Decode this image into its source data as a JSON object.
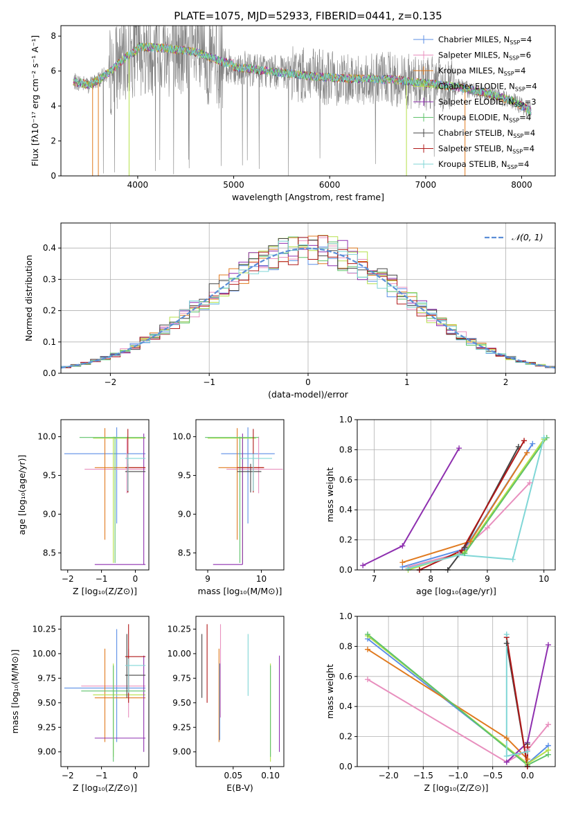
{
  "colors": {
    "chabrier_miles": "#5b8ee6",
    "salpeter_miles": "#e88fbe",
    "kroupa_miles": "#e07a1f",
    "chabrier_elodie": "#b5e04a",
    "salpeter_elodie": "#8e2faf",
    "kroupa_elodie": "#5ec26a",
    "chabrier_stelib": "#444444",
    "salpeter_stelib": "#b01818",
    "kroupa_stelib": "#7fd6d6",
    "data": "#808080",
    "normal": "#5b8ed6"
  },
  "chart_data": [
    {
      "id": "spectrum",
      "type": "line",
      "title": "PLATE=1075, MJD=52933, FIBERID=0441, z=0.135",
      "xlabel": "wavelength [Angstrom, rest frame]",
      "ylabel": "Flux [fλ10⁻¹⁷ erg cm⁻² s⁻¹ A⁻¹]",
      "xlim": [
        3200,
        8350
      ],
      "ylim": [
        0,
        8.6
      ],
      "xticks": [
        "4000",
        "5000",
        "6000",
        "7000",
        "8000"
      ],
      "yticks": [
        "0",
        "2",
        "4",
        "6",
        "8"
      ],
      "legend": [
        {
          "base": "Chabrier MILES, N",
          "sub": "SSP",
          "tail": "=4",
          "color": "chabrier_miles"
        },
        {
          "base": "Salpeter MILES, N",
          "sub": "SSP",
          "tail": "=6",
          "color": "salpeter_miles"
        },
        {
          "base": "Kroupa MILES, N",
          "sub": "SSP",
          "tail": "=4",
          "color": "kroupa_miles"
        },
        {
          "base": "Chabrier ELODIE, N",
          "sub": "SSP",
          "tail": "=4",
          "color": "chabrier_elodie"
        },
        {
          "base": "Salpeter ELODIE, N",
          "sub": "SSP",
          "tail": "=3",
          "color": "salpeter_elodie"
        },
        {
          "base": "Kroupa ELODIE, N",
          "sub": "SSP",
          "tail": "=4",
          "color": "kroupa_elodie"
        },
        {
          "base": "Chabrier STELIB, N",
          "sub": "SSP",
          "tail": "=4",
          "color": "chabrier_stelib"
        },
        {
          "base": "Salpeter STELIB, N",
          "sub": "SSP",
          "tail": "=4",
          "color": "salpeter_stelib"
        },
        {
          "base": "Kroupa STELIB, N",
          "sub": "SSP",
          "tail": "=4",
          "color": "kroupa_stelib"
        }
      ],
      "continuum": [
        [
          3330,
          5.4
        ],
        [
          3500,
          5.2
        ],
        [
          3700,
          5.9
        ],
        [
          3900,
          6.9
        ],
        [
          4000,
          7.2
        ],
        [
          4300,
          7.1
        ],
        [
          4600,
          6.9
        ],
        [
          4900,
          6.3
        ],
        [
          5200,
          6.1
        ],
        [
          5500,
          5.9
        ],
        [
          5800,
          5.7
        ],
        [
          6100,
          5.6
        ],
        [
          6400,
          5.55
        ],
        [
          6700,
          5.5
        ],
        [
          7000,
          5.3
        ],
        [
          7300,
          5.1
        ],
        [
          7600,
          4.8
        ],
        [
          7900,
          4.3
        ],
        [
          8100,
          3.7
        ]
      ]
    },
    {
      "id": "residuals",
      "type": "histogram",
      "xlabel": "(data-model)/error",
      "ylabel": "Normed distribution",
      "xlim": [
        -2.5,
        2.5
      ],
      "ylim": [
        0,
        0.48
      ],
      "xticks": [
        "−2",
        "−1",
        "0",
        "1",
        "2"
      ],
      "yticks": [
        "0.0",
        "0.1",
        "0.2",
        "0.3",
        "0.4"
      ],
      "legend": "𝒩(0, 1)",
      "grid": true
    },
    {
      "id": "age_vs_Z",
      "type": "errorbar",
      "xlabel": "Z [log₁₀(Z/Z⊙)]",
      "ylabel": "age  [log₁₀(age/yr)]",
      "xlim": [
        -2.2,
        0.4
      ],
      "ylim": [
        8.28,
        10.22
      ],
      "xticks": [
        "−2",
        "−1",
        "0"
      ],
      "yticks": [
        "8.5",
        "9.0",
        "9.5",
        "10.0"
      ],
      "points": [
        {
          "color": "chabrier_miles",
          "x": -0.55,
          "xe": [
            -2.1,
            0.3
          ],
          "y": 9.78,
          "ye": [
            8.88,
            10.12
          ]
        },
        {
          "color": "salpeter_miles",
          "x": -0.25,
          "xe": [
            -1.5,
            0.3
          ],
          "y": 9.58,
          "ye": [
            9.27,
            10.0
          ]
        },
        {
          "color": "kroupa_miles",
          "x": -0.9,
          "xe": [
            -1.2,
            0.3
          ],
          "y": 9.6,
          "ye": [
            8.67,
            10.11
          ]
        },
        {
          "color": "chabrier_elodie",
          "x": -0.65,
          "xe": [
            -1.25,
            0.3
          ],
          "y": 9.98,
          "ye": [
            8.37,
            10.0
          ]
        },
        {
          "color": "salpeter_elodie",
          "x": 0.25,
          "xe": [
            -1.2,
            0.3
          ],
          "y": 8.35,
          "ye": [
            8.35,
            10.04
          ]
        },
        {
          "color": "kroupa_elodie",
          "x": -0.6,
          "xe": [
            -1.65,
            0.3
          ],
          "y": 9.99,
          "ye": [
            8.37,
            10.0
          ]
        },
        {
          "color": "chabrier_stelib",
          "x": -0.22,
          "xe": [
            -0.3,
            0.3
          ],
          "y": 9.55,
          "ye": [
            9.28,
            9.65
          ]
        },
        {
          "color": "salpeter_stelib",
          "x": -0.22,
          "xe": [
            -0.3,
            0.3
          ],
          "y": 9.6,
          "ye": [
            9.28,
            10.1
          ]
        },
        {
          "color": "kroupa_stelib",
          "x": -0.22,
          "xe": [
            -0.3,
            0.3
          ],
          "y": 9.72,
          "ye": [
            9.3,
            9.78
          ]
        }
      ]
    },
    {
      "id": "age_vs_mass",
      "type": "errorbar",
      "xlabel": "mass [log₁₀(M/M⊙)]",
      "ylabel": "",
      "xlim": [
        8.78,
        10.42
      ],
      "ylim": [
        8.28,
        10.22
      ],
      "xticks": [
        "9",
        "10"
      ],
      "yticks": [
        "8.5",
        "9.0",
        "9.5",
        "10.0"
      ],
      "points": [
        {
          "color": "chabrier_miles",
          "x": 9.75,
          "xe": [
            9.25,
            10.25
          ],
          "y": 9.78,
          "ye": [
            8.88,
            10.12
          ]
        },
        {
          "color": "salpeter_miles",
          "x": 9.95,
          "xe": [
            9.35,
            10.4
          ],
          "y": 9.58,
          "ye": [
            9.27,
            10.0
          ]
        },
        {
          "color": "kroupa_miles",
          "x": 9.55,
          "xe": [
            9.2,
            10.05
          ],
          "y": 9.6,
          "ye": [
            8.67,
            10.11
          ]
        },
        {
          "color": "chabrier_elodie",
          "x": 9.65,
          "xe": [
            9.0,
            9.9
          ],
          "y": 9.98,
          "ye": [
            8.37,
            10.0
          ]
        },
        {
          "color": "salpeter_elodie",
          "x": 9.65,
          "xe": [
            9.1,
            9.65
          ],
          "y": 8.35,
          "ye": [
            8.35,
            10.04
          ]
        },
        {
          "color": "kroupa_elodie",
          "x": 9.6,
          "xe": [
            8.95,
            9.95
          ],
          "y": 9.99,
          "ye": [
            8.37,
            10.0
          ]
        },
        {
          "color": "chabrier_stelib",
          "x": 9.8,
          "xe": [
            9.55,
            10.0
          ],
          "y": 9.55,
          "ye": [
            9.28,
            9.65
          ]
        },
        {
          "color": "salpeter_stelib",
          "x": 9.85,
          "xe": [
            9.55,
            10.05
          ],
          "y": 9.6,
          "ye": [
            9.28,
            10.1
          ]
        },
        {
          "color": "kroupa_stelib",
          "x": 9.85,
          "xe": [
            9.6,
            10.2
          ],
          "y": 9.72,
          "ye": [
            9.3,
            9.78
          ]
        }
      ]
    },
    {
      "id": "massweight_vs_age",
      "type": "line",
      "xlabel": "age  [log₁₀(age/yr)]",
      "ylabel": "mass weight",
      "xlim": [
        6.7,
        10.2
      ],
      "ylim": [
        0,
        1.0
      ],
      "xticks": [
        "7",
        "8",
        "9",
        "10"
      ],
      "yticks": [
        "0.0",
        "0.2",
        "0.4",
        "0.6",
        "0.8",
        "1.0"
      ],
      "grid": true,
      "series": [
        {
          "color": "chabrier_miles",
          "x": [
            7.5,
            8.6,
            9.8
          ],
          "y": [
            0.02,
            0.14,
            0.84
          ]
        },
        {
          "color": "salpeter_miles",
          "x": [
            7.6,
            8.5,
            9.0,
            9.75
          ],
          "y": [
            0.02,
            0.11,
            0.28,
            0.58
          ]
        },
        {
          "color": "kroupa_miles",
          "x": [
            7.5,
            8.7,
            9.7
          ],
          "y": [
            0.05,
            0.19,
            0.78
          ]
        },
        {
          "color": "chabrier_elodie",
          "x": [
            7.6,
            8.6,
            10.0
          ],
          "y": [
            0.0,
            0.12,
            0.87
          ]
        },
        {
          "color": "salpeter_elodie",
          "x": [
            6.8,
            7.5,
            8.5
          ],
          "y": [
            0.03,
            0.16,
            0.81
          ]
        },
        {
          "color": "kroupa_elodie",
          "x": [
            7.6,
            8.6,
            10.05
          ],
          "y": [
            0.01,
            0.11,
            0.88
          ]
        },
        {
          "color": "chabrier_stelib",
          "x": [
            7.8,
            8.3,
            8.6,
            9.55
          ],
          "y": [
            0.0,
            0.0,
            0.15,
            0.82
          ]
        },
        {
          "color": "salpeter_stelib",
          "x": [
            7.8,
            8.55,
            9.65
          ],
          "y": [
            0.0,
            0.13,
            0.86
          ]
        },
        {
          "color": "kroupa_stelib",
          "x": [
            7.6,
            8.5,
            9.45,
            10.0
          ],
          "y": [
            0.01,
            0.1,
            0.07,
            0.88
          ]
        }
      ]
    },
    {
      "id": "mass_vs_Z",
      "type": "errorbar",
      "xlabel": "Z [log₁₀(Z/Z⊙)]",
      "ylabel": "mass [log₁₀(M/M⊙)]",
      "xlim": [
        -2.2,
        0.4
      ],
      "ylim": [
        8.85,
        10.38
      ],
      "xticks": [
        "−2",
        "−1",
        "0"
      ],
      "yticks": [
        "9.00",
        "9.25",
        "9.50",
        "9.75",
        "10.00",
        "10.25"
      ],
      "points": [
        {
          "color": "chabrier_miles",
          "x": -0.55,
          "xe": [
            -2.1,
            0.3
          ],
          "y": 9.65,
          "ye": [
            9.1,
            10.25
          ]
        },
        {
          "color": "salpeter_miles",
          "x": -0.2,
          "xe": [
            -1.6,
            0.3
          ],
          "y": 9.67,
          "ye": [
            9.35,
            10.05
          ]
        },
        {
          "color": "kroupa_miles",
          "x": -0.9,
          "xe": [
            -1.2,
            0.3
          ],
          "y": 9.55,
          "ye": [
            9.1,
            10.05
          ]
        },
        {
          "color": "chabrier_elodie",
          "x": -0.65,
          "xe": [
            -1.25,
            0.3
          ],
          "y": 9.58,
          "ye": [
            8.95,
            9.9
          ]
        },
        {
          "color": "salpeter_elodie",
          "x": 0.25,
          "xe": [
            -1.2,
            0.3
          ],
          "y": 9.14,
          "ye": [
            9.0,
            9.98
          ]
        },
        {
          "color": "kroupa_elodie",
          "x": -0.65,
          "xe": [
            -1.6,
            0.3
          ],
          "y": 9.62,
          "ye": [
            8.9,
            9.88
          ]
        },
        {
          "color": "chabrier_stelib",
          "x": -0.25,
          "xe": [
            -0.3,
            0.3
          ],
          "y": 9.78,
          "ye": [
            9.55,
            10.2
          ]
        },
        {
          "color": "salpeter_stelib",
          "x": -0.2,
          "xe": [
            -0.3,
            0.3
          ],
          "y": 9.97,
          "ye": [
            9.5,
            10.3
          ]
        },
        {
          "color": "kroupa_stelib",
          "x": -0.2,
          "xe": [
            -0.3,
            0.3
          ],
          "y": 9.88,
          "ye": [
            9.6,
            9.95
          ]
        }
      ]
    },
    {
      "id": "mass_vs_ebv",
      "type": "errorbar",
      "xlabel": "E(B-V)",
      "ylabel": "",
      "xlim": [
        0.0,
        0.118
      ],
      "ylim": [
        8.85,
        10.38
      ],
      "xticks": [
        "0.05",
        "0.10"
      ],
      "yticks": [
        "9.00",
        "9.25",
        "9.50",
        "9.75",
        "10.00",
        "10.25"
      ],
      "points": [
        {
          "color": "chabrier_stelib",
          "x": 0.008,
          "xe": [
            0.008,
            0.008
          ],
          "y": 9.78,
          "ye": [
            9.55,
            10.2
          ]
        },
        {
          "color": "salpeter_stelib",
          "x": 0.015,
          "xe": [
            0.015,
            0.015
          ],
          "y": 9.97,
          "ye": [
            9.5,
            10.3
          ]
        },
        {
          "color": "salpeter_miles",
          "x": 0.033,
          "xe": [
            0.033,
            0.033
          ],
          "y": 9.67,
          "ye": [
            9.35,
            10.3
          ]
        },
        {
          "color": "kroupa_miles",
          "x": 0.031,
          "xe": [
            0.031,
            0.031
          ],
          "y": 9.55,
          "ye": [
            9.1,
            10.05
          ]
        },
        {
          "color": "chabrier_miles",
          "x": 0.032,
          "xe": [
            0.032,
            0.032
          ],
          "y": 9.65,
          "ye": [
            9.12,
            9.9
          ]
        },
        {
          "color": "kroupa_stelib",
          "x": 0.07,
          "xe": [
            0.07,
            0.07
          ],
          "y": 9.88,
          "ye": [
            9.57,
            10.2
          ]
        },
        {
          "color": "chabrier_elodie",
          "x": 0.1,
          "xe": [
            0.1,
            0.1
          ],
          "y": 9.58,
          "ye": [
            8.9,
            9.9
          ]
        },
        {
          "color": "kroupa_elodie",
          "x": 0.1,
          "xe": [
            0.1,
            0.1
          ],
          "y": 9.62,
          "ye": [
            8.95,
            9.88
          ]
        },
        {
          "color": "salpeter_elodie",
          "x": 0.112,
          "xe": [
            0.112,
            0.112
          ],
          "y": 9.14,
          "ye": [
            9.0,
            9.98
          ]
        }
      ]
    },
    {
      "id": "massweight_vs_Z",
      "type": "line",
      "xlabel": "Z [log₁₀(Z/Z⊙)]",
      "ylabel": "mass weight",
      "xlim": [
        -2.45,
        0.4
      ],
      "ylim": [
        0,
        1.0
      ],
      "xticks": [
        "−2.0",
        "−1.5",
        "−1.0",
        "−0.5",
        "0.0"
      ],
      "yticks": [
        "0.0",
        "0.2",
        "0.4",
        "0.6",
        "0.8",
        "1.0"
      ],
      "grid": true,
      "series": [
        {
          "color": "chabrier_miles",
          "x": [
            -2.3,
            0.0,
            0.3
          ],
          "y": [
            0.85,
            0.02,
            0.14
          ]
        },
        {
          "color": "salpeter_miles",
          "x": [
            -2.3,
            -0.3,
            0.0,
            0.3
          ],
          "y": [
            0.58,
            0.03,
            0.11,
            0.28
          ]
        },
        {
          "color": "kroupa_miles",
          "x": [
            -2.3,
            -0.3,
            0.0
          ],
          "y": [
            0.78,
            0.19,
            0.05
          ]
        },
        {
          "color": "chabrier_elodie",
          "x": [
            -2.3,
            0.0,
            0.3
          ],
          "y": [
            0.87,
            0.02,
            0.11
          ]
        },
        {
          "color": "salpeter_elodie",
          "x": [
            -0.3,
            0.0,
            0.3
          ],
          "y": [
            0.03,
            0.16,
            0.81
          ]
        },
        {
          "color": "kroupa_elodie",
          "x": [
            -2.3,
            0.0,
            0.3
          ],
          "y": [
            0.88,
            0.01,
            0.08
          ]
        },
        {
          "color": "chabrier_stelib",
          "x": [
            -0.3,
            0.0,
            0.0
          ],
          "y": [
            0.82,
            0.0,
            0.15
          ]
        },
        {
          "color": "salpeter_stelib",
          "x": [
            -0.3,
            0.0,
            0.0
          ],
          "y": [
            0.86,
            0.0,
            0.13
          ]
        },
        {
          "color": "kroupa_stelib",
          "x": [
            -0.3,
            -0.3,
            0.0
          ],
          "y": [
            0.88,
            0.07,
            0.1
          ]
        }
      ]
    }
  ]
}
